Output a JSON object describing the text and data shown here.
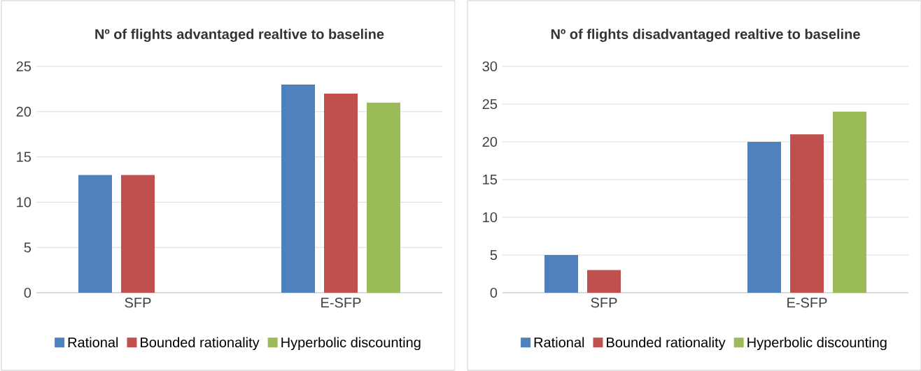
{
  "chart_data": [
    {
      "type": "bar",
      "title": "Nº of flights advantaged realtive to baseline",
      "categories": [
        "SFP",
        "E-SFP"
      ],
      "series": [
        {
          "name": "Rational",
          "color": "#4f81bd",
          "values": [
            13,
            23
          ]
        },
        {
          "name": "Bounded rationality",
          "color": "#c0504d",
          "values": [
            13,
            22
          ]
        },
        {
          "name": "Hyperbolic discounting",
          "color": "#9bbb59",
          "values": [
            null,
            21
          ]
        }
      ],
      "ylim": [
        0,
        25
      ],
      "yticks": [
        0,
        5,
        10,
        15,
        20,
        25
      ],
      "grid": "y",
      "legend": "bottom"
    },
    {
      "type": "bar",
      "title": "Nº of flights disadvantaged realtive to baseline",
      "categories": [
        "SFP",
        "E-SFP"
      ],
      "series": [
        {
          "name": "Rational",
          "color": "#4f81bd",
          "values": [
            5,
            20
          ]
        },
        {
          "name": "Bounded rationality",
          "color": "#c0504d",
          "values": [
            3,
            21
          ]
        },
        {
          "name": "Hyperbolic discounting",
          "color": "#9bbb59",
          "values": [
            null,
            24
          ]
        }
      ],
      "ylim": [
        0,
        30
      ],
      "yticks": [
        0,
        5,
        10,
        15,
        20,
        25,
        30
      ],
      "grid": "y",
      "legend": "bottom"
    }
  ]
}
